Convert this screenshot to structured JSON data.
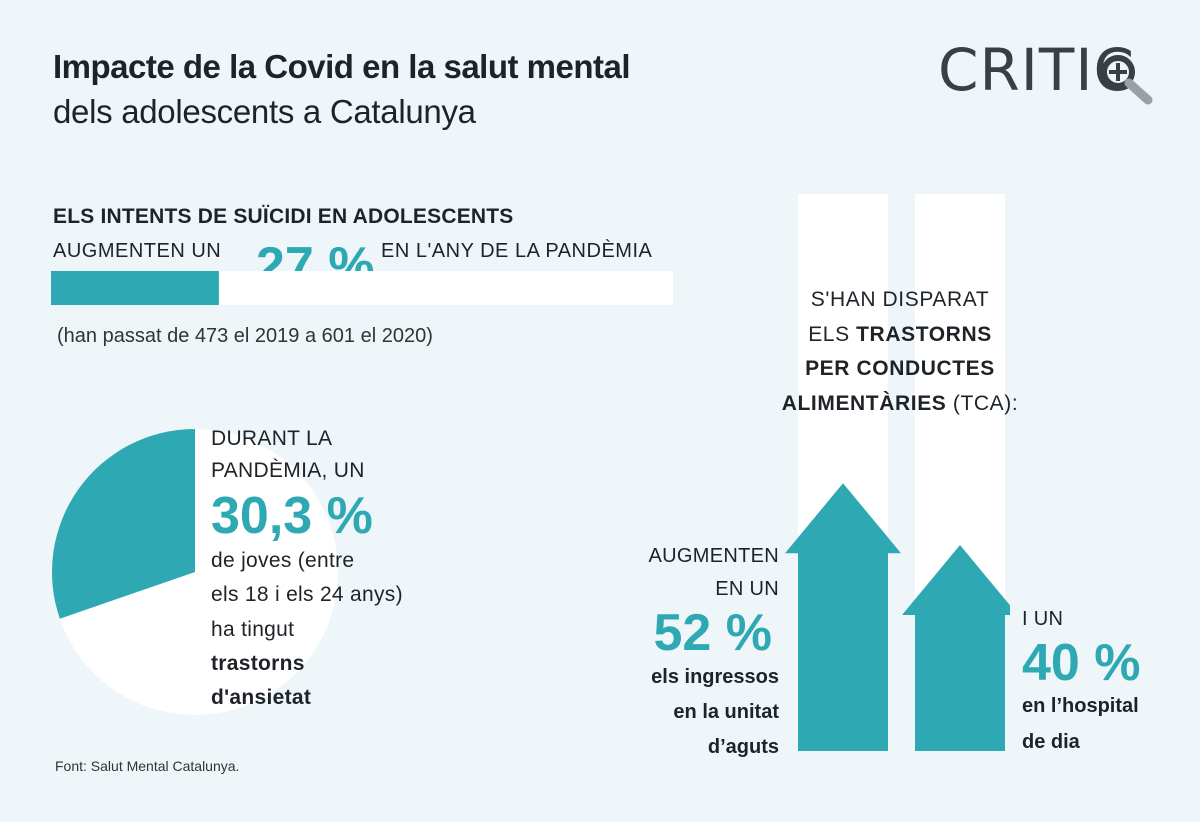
{
  "header": {
    "title": "Impacte de la Covid en la salut mental",
    "subtitle": "dels adolescents a Catalunya",
    "logo_text": "CRITIC"
  },
  "suicide": {
    "heading": "ELS INTENTS DE SUÏCIDI EN ADOLESCENTS",
    "prefix": "AUGMENTEN UN",
    "percent": "27 %",
    "suffix": "EN L'ANY DE LA PANDÈMIA",
    "note": "(han passat de 473 el 2019 a 601 el 2020)"
  },
  "anxiety": {
    "line1": "DURANT LA",
    "line2": "PANDÈMIA, UN",
    "percent": "30,3 %",
    "line3": "de joves (entre",
    "line4": "els 18 i els 24 anys)",
    "line5": "ha tingut",
    "line6": "trastorns",
    "line7": "d'ansietat"
  },
  "tca": {
    "line1": "S'HAN DISPARAT",
    "line2_prefix": "ELS",
    "line2_bold": "TRASTORNS",
    "line3": "PER CONDUCTES",
    "line4_bold": "ALIMENTÀRIES",
    "line4_rest": "(TCA):",
    "left_l1": "AUGMENTEN",
    "left_l2": "EN UN",
    "left_pct": "52 %",
    "left_b1": "els ingressos",
    "left_b2": "en la unitat",
    "left_b3": "d’aguts",
    "right_l1": "I UN",
    "right_pct": "40 %",
    "right_b1": "en l’hospital",
    "right_b2": "de dia"
  },
  "source": "Font: Salut Mental Catalunya.",
  "colors": {
    "accent": "#2ea9b3",
    "background": "#eef6f9",
    "track": "#ffffff",
    "text": "#1f2328"
  },
  "chart_data": [
    {
      "type": "bar",
      "categories": [
        "Intents de suïcidi"
      ],
      "values": [
        27
      ],
      "ylim": [
        0,
        100
      ],
      "title": "",
      "xlabel": "",
      "ylabel": ""
    },
    {
      "type": "pie",
      "categories": [
        "trastorns d'ansietat",
        ""
      ],
      "values": [
        30.3,
        69.7
      ]
    },
    {
      "type": "bar",
      "categories": [
        "els ingressos en la unitat d’aguts",
        "en l’hospital de dia"
      ],
      "values": [
        52,
        40
      ],
      "ylim": [
        0,
        100
      ]
    }
  ]
}
